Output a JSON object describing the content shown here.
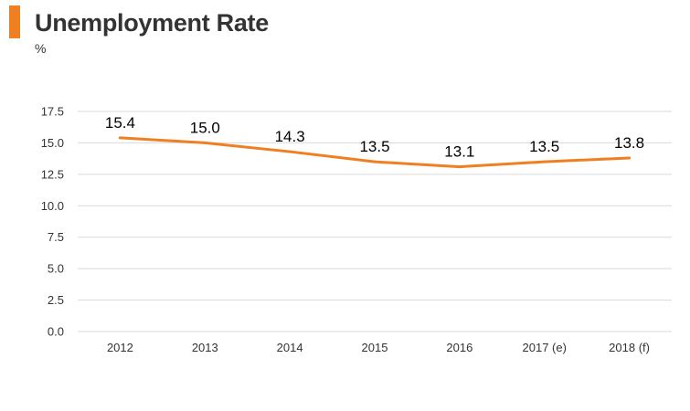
{
  "title": "Unemployment Rate",
  "unit_label": "%",
  "colors": {
    "accent": "#f07f22",
    "line": "#f07f22",
    "grid": "#d9d9d9",
    "text": "#333333"
  },
  "chart_data": {
    "type": "line",
    "title": "Unemployment Rate",
    "ylabel": "%",
    "xlabel": "",
    "categories": [
      "2012",
      "2013",
      "2014",
      "2015",
      "2016",
      "2017 (e)",
      "2018 (f)"
    ],
    "series": [
      {
        "values": [
          15.4,
          15.0,
          14.3,
          13.5,
          13.1,
          13.5,
          13.8
        ],
        "labels": [
          "15.4",
          "15.0",
          "14.3",
          "13.5",
          "13.1",
          "13.5",
          "13.8"
        ]
      }
    ],
    "ylim": [
      0,
      17.5
    ],
    "yticks": [
      "0.0",
      "2.5",
      "5.0",
      "7.5",
      "10.0",
      "12.5",
      "15.0",
      "17.5"
    ],
    "grid": true,
    "legend": "none"
  }
}
